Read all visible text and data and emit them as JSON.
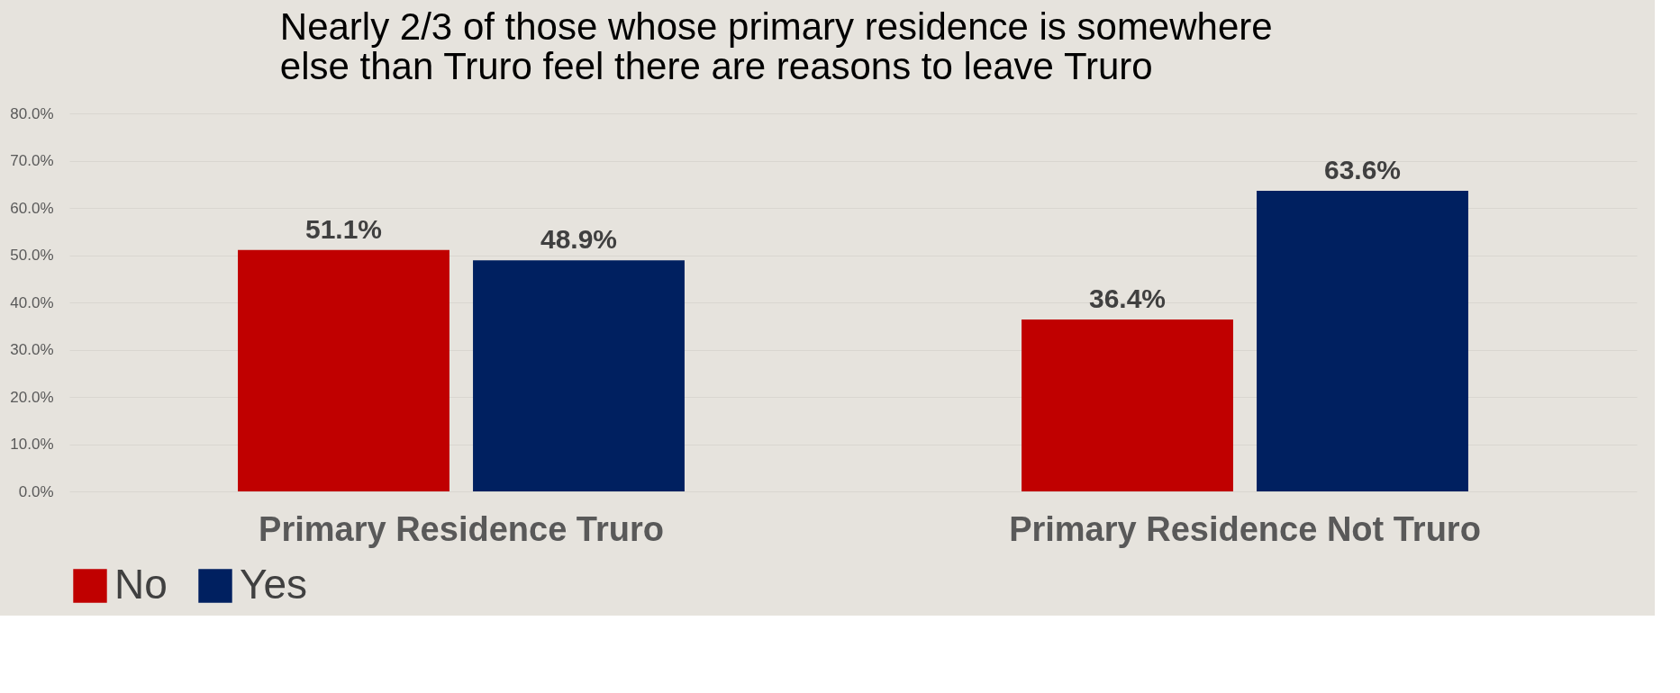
{
  "chart_data": {
    "type": "bar",
    "title": [
      "Nearly 2/3 of those whose primary residence is somewhere",
      "else than Truro feel there are reasons to leave Truro"
    ],
    "categories": [
      "Primary Residence Truro",
      "Primary Residence Not Truro"
    ],
    "series": [
      {
        "name": "No",
        "color": "#c00000",
        "values": [
          51.1,
          36.4
        ],
        "value_labels": [
          "51.1%",
          "36.4%"
        ]
      },
      {
        "name": "Yes",
        "color": "#002060",
        "values": [
          48.9,
          63.6
        ],
        "value_labels": [
          "48.9%",
          "63.6%"
        ]
      }
    ],
    "ylim": [
      0,
      80
    ],
    "yticks": [
      {
        "value": 0,
        "label": "0.0%"
      },
      {
        "value": 10,
        "label": "10.0%"
      },
      {
        "value": 20,
        "label": "20.0%"
      },
      {
        "value": 30,
        "label": "30.0%"
      },
      {
        "value": 40,
        "label": "40.0%"
      },
      {
        "value": 50,
        "label": "50.0%"
      },
      {
        "value": 60,
        "label": "60.0%"
      },
      {
        "value": 70,
        "label": "70.0%"
      },
      {
        "value": 80,
        "label": "80.0%"
      }
    ],
    "grid": "y",
    "legend": "bottom"
  }
}
